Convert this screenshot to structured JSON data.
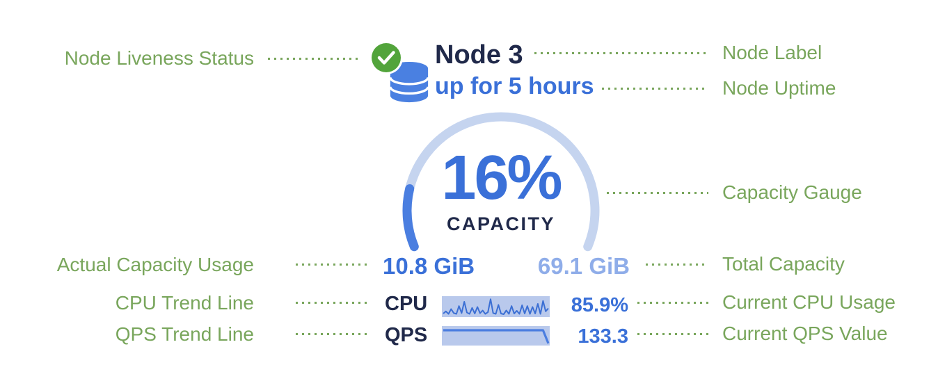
{
  "colors": {
    "annotation_green": "#79a65c",
    "check_green": "#52a43b",
    "db_blue": "#4a80e1",
    "navy": "#20294a",
    "blue_strong": "#3a70d8",
    "blue_light": "#8fade9",
    "gauge_track": "#c5d4ef",
    "gauge_fill": "#4a7ee0",
    "spark_bg": "#b9c9ec",
    "spark_line": "#3b6fd4",
    "qps_line": "#4a7de0",
    "bg": "#ffffff"
  },
  "node": {
    "status_icon": "check-circle",
    "node_icon": "database",
    "label": "Node 3",
    "uptime": "up for 5 hours",
    "gauge": {
      "type": "gauge",
      "percent": 16,
      "display": "16%",
      "caption": "CAPACITY",
      "sweep_deg": 225
    },
    "capacity": {
      "used": "10.8 GiB",
      "total": "69.1 GiB"
    },
    "metrics": {
      "cpu": {
        "label": "CPU",
        "value": "85.9%",
        "trend": [
          0.12,
          0.25,
          0.1,
          0.38,
          0.15,
          0.1,
          0.55,
          0.15,
          0.8,
          0.18,
          0.1,
          0.45,
          0.12,
          0.5,
          0.14,
          0.3,
          0.1,
          0.2,
          0.95,
          0.15,
          0.1,
          0.62,
          0.12,
          0.08,
          0.3,
          0.1,
          0.55,
          0.12,
          0.28,
          0.1,
          0.6,
          0.12,
          0.55,
          0.1,
          0.5,
          0.12,
          0.68,
          0.1,
          0.85,
          0.25,
          0.42
        ]
      },
      "qps": {
        "label": "QPS",
        "value": "133.3",
        "trend": [
          0.87,
          0.87,
          0.87,
          0.87,
          0.87,
          0.87,
          0.87,
          0.87,
          0.87,
          0.87,
          0.87,
          0.87,
          0.87,
          0.87,
          0.87,
          0.87,
          0.87,
          0.87,
          0.87,
          0.87,
          0.05
        ]
      }
    }
  },
  "annotations": {
    "left": [
      {
        "label": "Node Liveness Status"
      },
      {
        "label": "Actual Capacity Usage"
      },
      {
        "label": "CPU Trend Line"
      },
      {
        "label": "QPS Trend Line"
      }
    ],
    "right": [
      {
        "label": "Node Label"
      },
      {
        "label": "Node Uptime"
      },
      {
        "label": "Capacity Gauge"
      },
      {
        "label": "Total Capacity"
      },
      {
        "label": "Current CPU Usage"
      },
      {
        "label": "Current QPS Value"
      }
    ]
  }
}
